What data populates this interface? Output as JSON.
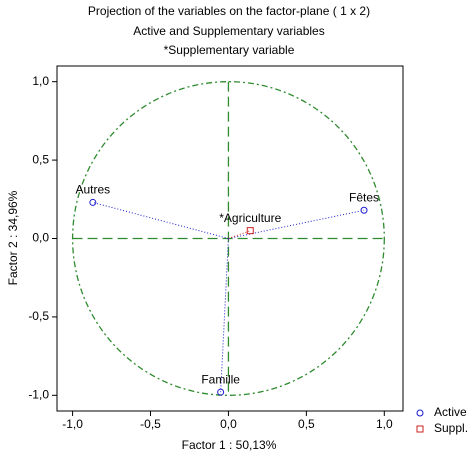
{
  "chart_data": {
    "type": "scatter",
    "title": "Projection of the variables on the factor-plane ( 1 x  2)",
    "subtitle": "Active and Supplementary variables",
    "note": "*Supplementary variable",
    "xlabel": "Factor 1 : 50,13%",
    "ylabel": "Factor 2 : 34,96%",
    "xlim": [
      -1.1,
      1.12
    ],
    "ylim": [
      -1.1,
      1.1
    ],
    "xticks": [
      {
        "value": -1,
        "label": "-1,0"
      },
      {
        "value": -0.5,
        "label": "-0,5"
      },
      {
        "value": 0,
        "label": "0,0"
      },
      {
        "value": 0.5,
        "label": "0,5"
      },
      {
        "value": 1,
        "label": "1,0"
      }
    ],
    "yticks": [
      {
        "value": -1,
        "label": "-1,0"
      },
      {
        "value": -0.5,
        "label": "-0,5"
      },
      {
        "value": 0,
        "label": "0,0"
      },
      {
        "value": 0.5,
        "label": "0,5"
      },
      {
        "value": 1,
        "label": "1,0"
      }
    ],
    "unit_circle": true,
    "circle_color": "#2e8b2e",
    "series": [
      {
        "name": "Active",
        "color": "#1a1acc",
        "marker": "circle",
        "x": [
          -0.87,
          0.87,
          -0.05
        ],
        "y": [
          0.23,
          0.18,
          -0.98
        ],
        "labels": [
          "Autres",
          "Fêtes",
          "Famille"
        ]
      },
      {
        "name": "Suppl.",
        "color": "#cc2222",
        "marker": "square",
        "x": [
          0.14
        ],
        "y": [
          0.05
        ],
        "labels": [
          "*Agriculture"
        ]
      }
    ],
    "legend": "bottom-right"
  }
}
